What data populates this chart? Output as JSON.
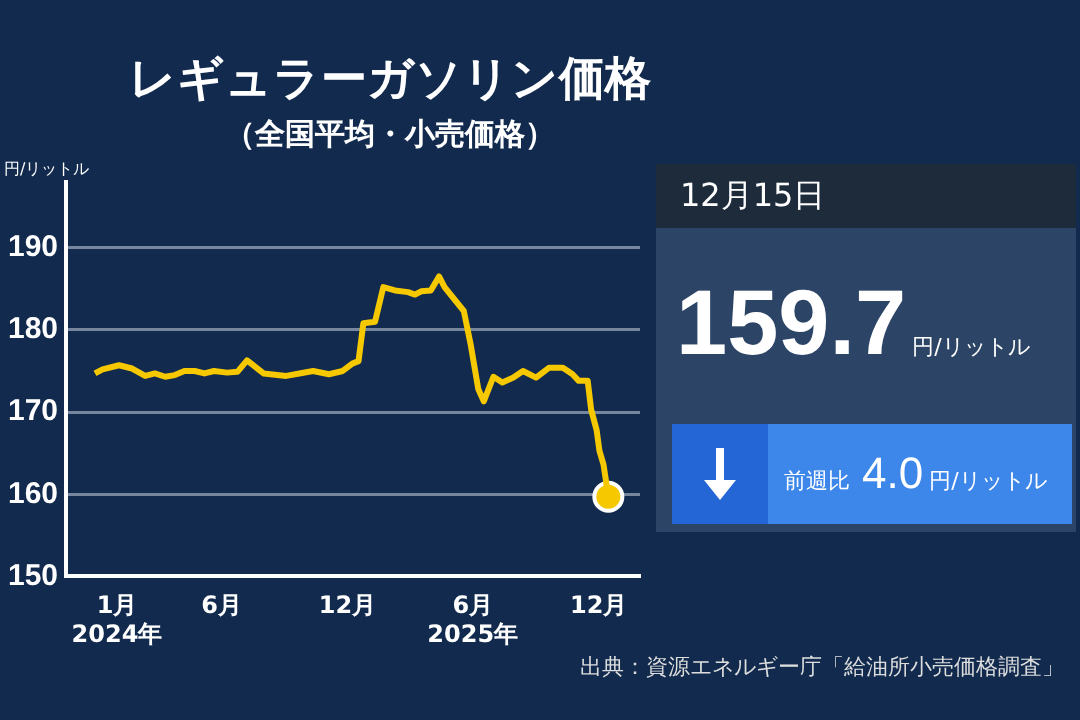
{
  "chart_data": {
    "type": "line",
    "title": "レギュラーガソリン価格",
    "subtitle": "（全国平均・小売価格）",
    "ylabel": "円/リットル",
    "x": [
      "2023-11-30",
      "2023-12-11",
      "2024-01-04",
      "2024-01-23",
      "2024-02-11",
      "2024-02-25",
      "2024-03-11",
      "2024-03-25",
      "2024-04-08",
      "2024-04-23",
      "2024-05-07",
      "2024-05-21",
      "2024-06-09",
      "2024-06-24",
      "2024-07-08",
      "2024-08-01",
      "2024-09-03",
      "2024-09-22",
      "2024-10-12",
      "2024-11-04",
      "2024-11-24",
      "2024-12-08",
      "2024-12-17",
      "2024-12-24",
      "2025-01-10",
      "2025-01-22",
      "2025-02-08",
      "2025-02-27",
      "2025-03-09",
      "2025-03-18",
      "2025-04-01",
      "2025-04-13",
      "2025-04-21",
      "2025-05-19",
      "2025-05-29",
      "2025-06-09",
      "2025-06-17",
      "2025-07-01",
      "2025-07-14",
      "2025-07-30",
      "2025-08-13",
      "2025-09-01",
      "2025-09-20",
      "2025-10-10",
      "2025-10-24",
      "2025-11-02",
      "2025-11-15",
      "2025-11-20",
      "2025-11-28",
      "2025-12-02",
      "2025-12-08",
      "2025-12-15"
    ],
    "series": [
      {
        "type": "line",
        "color": "#f5c800",
        "marker": "none",
        "values": [
          174.7,
          175.2,
          175.7,
          175.3,
          174.4,
          174.7,
          174.3,
          174.5,
          175.0,
          175.0,
          174.7,
          175.0,
          174.8,
          174.9,
          176.3,
          174.7,
          174.4,
          174.7,
          175.0,
          174.6,
          175.0,
          175.9,
          176.2,
          180.8,
          181.0,
          185.2,
          184.8,
          184.6,
          184.3,
          184.7,
          184.8,
          186.5,
          185.2,
          182.3,
          178.2,
          172.8,
          171.3,
          174.3,
          173.6,
          174.2,
          175.0,
          174.2,
          175.4,
          175.4,
          174.6,
          173.8,
          173.8,
          170.3,
          167.8,
          165.3,
          163.6,
          159.7
        ]
      },
      {
        "type": "scatter",
        "color": "#f5c800",
        "marker": "circle",
        "x": [
          "2025-12-15"
        ],
        "values": [
          159.7
        ]
      }
    ],
    "xlim": [
      "2023-10-19",
      "2026-01-30"
    ],
    "xticks": [
      {
        "value": "2024-01-01",
        "label": "1月\n2024年"
      },
      {
        "value": "2024-06-01",
        "label": "6月"
      },
      {
        "value": "2024-12-01",
        "label": "12月"
      },
      {
        "value": "2025-06-01",
        "label": "6月\n2025年"
      },
      {
        "value": "2025-12-01",
        "label": "12月"
      }
    ],
    "ylim": [
      150,
      198
    ],
    "yticks": [
      150,
      160,
      170,
      180,
      190
    ],
    "grid": "y",
    "legend": false,
    "annotations": [
      "12月15日",
      "159.7",
      "円/リットル",
      "前週比",
      "4.0",
      "円/リットル",
      "出典：資源エネルギー庁「給油所小売価格調査」"
    ]
  }
}
